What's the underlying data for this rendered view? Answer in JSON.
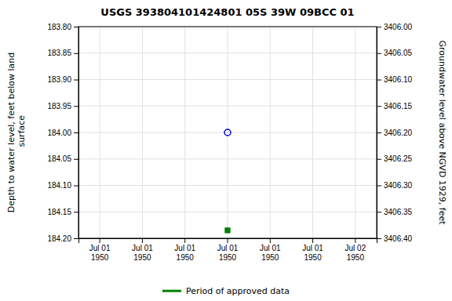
{
  "chart_data": {
    "type": "scatter",
    "title": "USGS 393804101424801 05S 39W 09BCC 01",
    "y_label": "Depth to water level, feet below land\n surface",
    "y2_label": "Groundwater level above NGVD 1929, feet",
    "categories": [
      "Jul 01\n1950",
      "Jul 01\n1950",
      "Jul 01\n1950",
      "Jul 01\n1950",
      "Jul 01\n1950",
      "Jul 01\n1950",
      "Jul 02\n1950"
    ],
    "series": [
      {
        "color": "#0000cc",
        "marker": "circle",
        "values": [
          null,
          null,
          null,
          184.0,
          null,
          null,
          null
        ]
      },
      {
        "name": "Period of approved data",
        "color": "#008000",
        "marker": "square",
        "values": [
          null,
          null,
          null,
          184.185,
          null,
          null,
          null
        ]
      }
    ],
    "ylim": [
      184.2,
      183.8
    ],
    "yticks": [
      {
        "value": 183.8,
        "label": "183.80"
      },
      {
        "value": 183.85,
        "label": "183.85"
      },
      {
        "value": 183.9,
        "label": "183.90"
      },
      {
        "value": 183.95,
        "label": "183.95"
      },
      {
        "value": 184.0,
        "label": "184.00"
      },
      {
        "value": 184.05,
        "label": "184.05"
      },
      {
        "value": 184.1,
        "label": "184.10"
      },
      {
        "value": 184.15,
        "label": "184.15"
      },
      {
        "value": 184.2,
        "label": "184.20"
      }
    ],
    "y2lim": [
      3406.4,
      3406.0
    ],
    "y2ticks": [
      {
        "value": 3406.4,
        "label": "3406.40"
      },
      {
        "value": 3406.35,
        "label": "3406.35"
      },
      {
        "value": 3406.3,
        "label": "3406.30"
      },
      {
        "value": 3406.25,
        "label": "3406.25"
      },
      {
        "value": 3406.2,
        "label": "3406.20"
      },
      {
        "value": 3406.15,
        "label": "3406.15"
      },
      {
        "value": 3406.1,
        "label": "3406.10"
      },
      {
        "value": 3406.05,
        "label": "3406.05"
      },
      {
        "value": 3406.0,
        "label": "3406.00"
      }
    ],
    "grid": true,
    "legend": "bottom"
  }
}
